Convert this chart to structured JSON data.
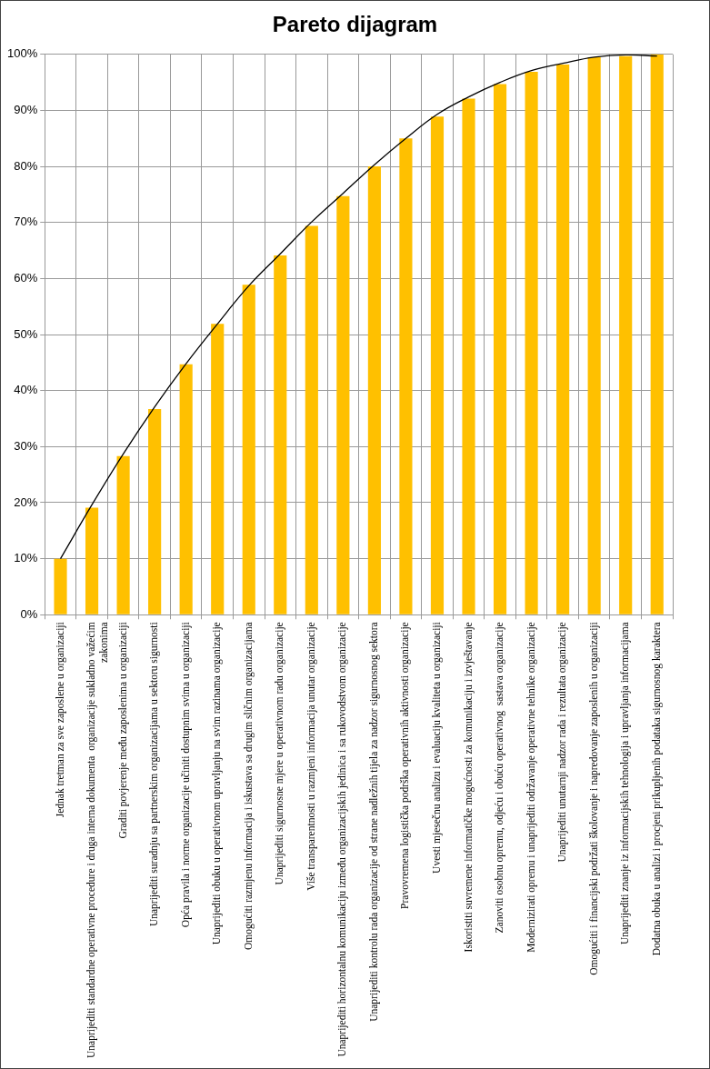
{
  "chart_data": {
    "type": "bar",
    "title": "Pareto dijagram",
    "categories": [
      "Jednak tretman za sve zaposlene u organizaciji",
      "Unaprijediti standardne operativne procedure i druga interna dokumenta  organizacije sukladno važećim zakonima",
      "Graditi povjerenje među zaposlenima u organizaciji",
      "Unaprijediti suradnju sa partnerskim organizacijama u sektoru sigurnosti",
      "Opća pravila i norme organizacije učiniti dostupnim svima u organizaciji",
      "Unaprijediti obuku u operativnom upravljanju na svim razinama organizacije",
      "Omogućiti razmjenu informacija i iskustava sa drugim sličnim organizacijama",
      "Unaprijediti sigurnosne mjere u operativnom radu organizacije",
      "Više transparentnosti u razmjeni informacija unutar organizacije",
      "Unaprijediti horizontalnu komunikaciju između organizacijskih jedinica i sa rukovodstvom organizacije",
      "Unaprijediti kontrolu rada organizacije od strane nadležnih tijela za nadzor sigurnosnog sektora",
      "Pravovremena logistička podrška operativnih aktivnosti organizacije",
      "Uvesti mjesečnu analizu i evaluaciju kvaliteta u organizaciji",
      "Iskoristiti suvremene informatičke mogućnosti za komunikaciju i izvještavanje",
      "Zanoviti osobnu opremu, odjeću i obuću operativnog  sastava organizacije",
      "Modernizirati opremu i unaprijediti održavanje operativne tehnike organizacije",
      "Unaprijediti unutarnji nadzor rada i rezultata organizacije",
      "Omogućiti i financijski podržati školovanje i napredovanje zaposlenih u organizaciji",
      "Unaprijediti znanje iz informacijskih tehnologija i upravljanja informacijama",
      "Dodatna obuka u analizi i procjeni prikupljenih podataka sigurnosnog karaktera"
    ],
    "series": [
      {
        "color": "#ffc000",
        "values": [
          10,
          19.1,
          28.3,
          36.7,
          44.7,
          51.9,
          58.9,
          64.1,
          69.4,
          74.7,
          80,
          85,
          88.9,
          92.1,
          94.7,
          96.9,
          98.2,
          99.5,
          99.7,
          100
        ]
      },
      {
        "type": "line",
        "color": "#000000",
        "marker": "none",
        "values": [
          10,
          19.6,
          28.7,
          37.1,
          44.8,
          51.9,
          58.7,
          64.4,
          70.1,
          75.2,
          80.3,
          85,
          89.3,
          92.4,
          95,
          97.1,
          98.4,
          99.5,
          99.9,
          99.7
        ]
      }
    ],
    "ylim": [
      0,
      100
    ],
    "yticks": [
      {
        "value": 0,
        "label": "0%"
      },
      {
        "value": 10,
        "label": "10%"
      },
      {
        "value": 20,
        "label": "20%"
      },
      {
        "value": 30,
        "label": "30%"
      },
      {
        "value": 40,
        "label": "40%"
      },
      {
        "value": 50,
        "label": "50%"
      },
      {
        "value": 60,
        "label": "60%"
      },
      {
        "value": 70,
        "label": "70%"
      },
      {
        "value": 80,
        "label": "80%"
      },
      {
        "value": 90,
        "label": "90%"
      },
      {
        "value": 100,
        "label": "100%"
      }
    ],
    "grid": true,
    "legend": false
  }
}
